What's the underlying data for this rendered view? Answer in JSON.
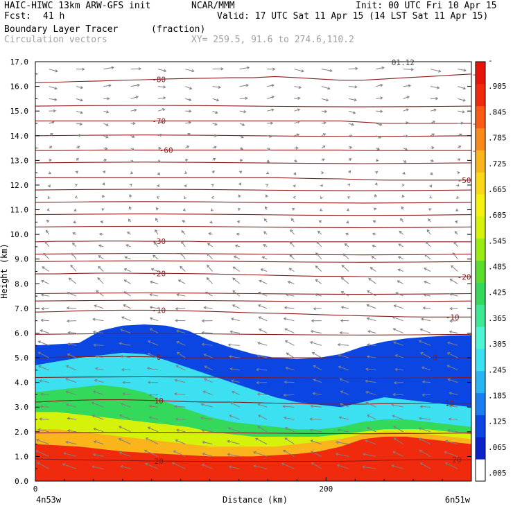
{
  "header": {
    "model_title": "HAIC-HIWC 13km ARW-GFS init",
    "org": "NCAR/MMM",
    "init": "Init: 00 UTC Fri 10 Apr 15",
    "fcst_label": "Fcst:",
    "fcst_value": "41 h",
    "valid": "Valid: 17 UTC Sat 11 Apr 15 (14 LST Sat 11 Apr 15)",
    "field_name": "Boundary Layer Tracer",
    "field_units": "(fraction)",
    "overlay_name": "Circulation vectors",
    "xy": "XY= 259.5, 91.6 to 274.6,110.2"
  },
  "colors": {
    "contour": "#8b1a1a",
    "vector": "#808080"
  },
  "chart_data": {
    "type": "heatmap",
    "xlabel": "Distance (km)",
    "ylabel": "Height (km)",
    "xlim": [
      0,
      300
    ],
    "ylim": [
      0,
      17
    ],
    "x_ticks": [
      "0",
      "200"
    ],
    "x_tick_values": [
      0,
      200
    ],
    "y_ticks": [
      "0.0",
      "1.0",
      "2.0",
      "3.0",
      "4.0",
      "5.0",
      "6.0",
      "7.0",
      "8.0",
      "9.0",
      "10.0",
      "11.0",
      "12.0",
      "13.0",
      "14.0",
      "15.0",
      "16.0",
      "17.0"
    ],
    "endpoint_left": "4n53w",
    "endpoint_right": "6n51w",
    "top_right_annotation": "01.12",
    "colorbar": {
      "labels": [
        ".005",
        ".065",
        ".125",
        ".185",
        ".245",
        ".305",
        ".365",
        ".425",
        ".485",
        ".545",
        ".605",
        ".665",
        ".725",
        ".785",
        ".845",
        ".905",
        "-"
      ],
      "label_values": [
        0.005,
        0.065,
        0.125,
        0.185,
        0.245,
        0.305,
        0.365,
        0.425,
        0.485,
        0.545,
        0.605,
        0.665,
        0.725,
        0.785,
        0.845,
        0.905,
        0.965
      ],
      "colors": [
        "#ffffff",
        "#0a22c8",
        "#0c46e2",
        "#1a7ef0",
        "#2ab4f2",
        "#3ce0f0",
        "#50f4d2",
        "#3fe894",
        "#34d85a",
        "#5cdc2c",
        "#9aea14",
        "#d4f20a",
        "#f6f210",
        "#fad818",
        "#fab41c",
        "#fa8a1c",
        "#fa5a14",
        "#f02a0c",
        "#e8140a"
      ]
    },
    "tracer_regions": [
      {
        "label": "fraction ≥ 0.005",
        "level": 0.005,
        "top_km": [
          5.5,
          5.55,
          5.6,
          6.1,
          6.3,
          6.35,
          6.3,
          6.1,
          5.7,
          5.4,
          5.15,
          5.0,
          4.95,
          5.0,
          5.15,
          5.45,
          5.65,
          5.78,
          5.85,
          5.9,
          5.92
        ]
      },
      {
        "label": "fraction ≥ 0.185",
        "level": 0.185,
        "top_km": [
          4.7,
          4.85,
          5.0,
          5.1,
          5.2,
          5.15,
          4.9,
          4.6,
          4.3,
          4.0,
          3.7,
          3.4,
          3.2,
          3.1,
          3.0,
          3.2,
          3.4,
          3.3,
          3.2,
          3.1,
          3.0
        ]
      },
      {
        "label": "fraction ≥ 0.365",
        "level": 0.365,
        "top_km": [
          3.6,
          3.7,
          3.8,
          3.9,
          3.8,
          3.6,
          3.2,
          2.9,
          2.6,
          2.4,
          2.3,
          2.2,
          2.1,
          2.1,
          2.2,
          2.4,
          2.5,
          2.5,
          2.4,
          2.3,
          2.2
        ]
      },
      {
        "label": "fraction ≥ 0.545",
        "level": 0.545,
        "top_km": [
          2.8,
          2.8,
          2.7,
          2.6,
          2.5,
          2.4,
          2.3,
          2.2,
          2.0,
          1.9,
          1.8,
          1.8,
          1.8,
          1.8,
          1.9,
          2.0,
          2.1,
          2.1,
          2.1,
          2.0,
          1.9
        ]
      },
      {
        "label": "fraction ≥ 0.725",
        "level": 0.725,
        "top_km": [
          2.1,
          2.1,
          2.0,
          1.9,
          1.8,
          1.7,
          1.6,
          1.5,
          1.4,
          1.4,
          1.4,
          1.4,
          1.5,
          1.6,
          1.7,
          1.9,
          2.0,
          2.0,
          1.9,
          1.8,
          1.7
        ]
      },
      {
        "label": "fraction ≥ 0.905",
        "level": 0.905,
        "top_km": [
          1.5,
          1.45,
          1.4,
          1.3,
          1.2,
          1.15,
          1.1,
          1.05,
          1.0,
          1.0,
          1.0,
          1.05,
          1.1,
          1.2,
          1.4,
          1.7,
          1.8,
          1.8,
          1.7,
          1.6,
          1.5
        ]
      }
    ],
    "temperature_contours": [
      {
        "label": "20",
        "height_km": [
          0.9,
          0.88,
          0.86,
          0.85,
          0.84,
          0.82,
          0.81,
          0.8,
          0.8,
          0.8,
          0.8,
          0.8,
          0.8,
          0.8,
          0.8,
          0.82,
          0.85,
          0.86,
          0.87,
          0.87,
          0.86
        ],
        "label_x_km": [
          85,
          290
        ]
      },
      {
        "label": "10",
        "height_km": [
          3.2,
          3.25,
          3.28,
          3.3,
          3.3,
          3.28,
          3.25,
          3.22,
          3.2,
          3.2,
          3.18,
          3.16,
          3.14,
          3.12,
          3.12,
          3.12,
          3.14,
          3.15,
          3.16,
          3.16,
          3.15
        ],
        "label_x_km": [
          85,
          285
        ]
      },
      {
        "label": "0",
        "height_km": [
          5.0,
          5.02,
          5.04,
          5.05,
          5.05,
          5.04,
          5.02,
          5.0,
          5.0,
          5.0,
          5.0,
          5.0,
          5.0,
          5.0,
          5.02,
          5.02,
          5.02,
          5.02,
          5.02,
          5.01,
          5.0
        ],
        "label_x_km": [
          85,
          275
        ]
      },
      {
        "label": "-10",
        "height_km": [
          6.85,
          6.87,
          6.9,
          6.92,
          6.93,
          6.93,
          6.92,
          6.9,
          6.88,
          6.85,
          6.82,
          6.8,
          6.78,
          6.75,
          6.72,
          6.7,
          6.68,
          6.66,
          6.65,
          6.65,
          6.65
        ],
        "label_x_km": [
          85,
          287
        ]
      },
      {
        "label": "-20",
        "height_km": [
          8.4,
          8.4,
          8.42,
          8.43,
          8.43,
          8.42,
          8.42,
          8.41,
          8.4,
          8.38,
          8.36,
          8.34,
          8.32,
          8.3,
          8.3,
          8.29,
          8.28,
          8.28,
          8.28,
          8.28,
          8.28
        ],
        "label_x_km": [
          85,
          295
        ]
      },
      {
        "label": "-30",
        "height_km": [
          9.7,
          9.72,
          9.72,
          9.73,
          9.73,
          9.72,
          9.72,
          9.72,
          9.7,
          9.7,
          9.7,
          9.7,
          9.7,
          9.7,
          9.7,
          9.7,
          9.7,
          9.7,
          9.7,
          9.7,
          9.7
        ],
        "label_x_km": [
          85
        ]
      },
      {
        "label": "-50",
        "height_km": [
          12.3,
          12.3,
          12.3,
          12.3,
          12.3,
          12.3,
          12.3,
          12.3,
          12.3,
          12.3,
          12.3,
          12.3,
          12.28,
          12.26,
          12.25,
          12.22,
          12.2,
          12.2,
          12.2,
          12.2,
          12.2
        ],
        "label_x_km": [
          295
        ]
      },
      {
        "label": "-60",
        "height_km": [
          13.4,
          13.4,
          13.41,
          13.42,
          13.42,
          13.42,
          13.42,
          13.42,
          13.42,
          13.42,
          13.42,
          13.42,
          13.42,
          13.42,
          13.42,
          13.4,
          13.4,
          13.4,
          13.4,
          13.4,
          13.4
        ],
        "label_x_km": [
          90,
          305
        ]
      },
      {
        "label": "-70",
        "height_km": [
          14.6,
          14.6,
          14.6,
          14.6,
          14.6,
          14.6,
          14.6,
          14.6,
          14.6,
          14.6,
          14.6,
          14.6,
          14.6,
          14.6,
          14.6,
          14.55,
          14.5,
          14.5,
          14.5,
          14.5,
          14.5
        ],
        "label_x_km": [
          85,
          305
        ]
      },
      {
        "label": "-80",
        "height_km": [
          16.15,
          16.17,
          16.2,
          16.22,
          16.25,
          16.27,
          16.3,
          16.32,
          16.33,
          16.35,
          16.35,
          16.4,
          16.35,
          16.3,
          16.25,
          16.25,
          16.3,
          16.35,
          16.4,
          16.45,
          16.5
        ],
        "label_x_km": [
          85,
          305
        ]
      }
    ],
    "unlabeled_isotherm_heights_km": [
      15.2,
      14.0,
      12.9,
      11.8,
      11.3,
      10.8,
      10.3,
      9.2,
      8.9,
      7.6,
      7.3,
      5.95,
      4.2,
      1.95
    ],
    "wind_vectors_u_by_height": [
      {
        "z_km": 0.5,
        "u": -14,
        "w": 0.5
      },
      {
        "z_km": 1.0,
        "u": -14,
        "w": 0.5
      },
      {
        "z_km": 1.5,
        "u": -13,
        "w": 0.5
      },
      {
        "z_km": 2.0,
        "u": -12,
        "w": 0.4
      },
      {
        "z_km": 2.5,
        "u": -12,
        "w": 0.3
      },
      {
        "z_km": 3.0,
        "u": -12,
        "w": 0.3
      },
      {
        "z_km": 3.5,
        "u": -11,
        "w": 0.2
      },
      {
        "z_km": 4.0,
        "u": -11,
        "w": 0.2
      },
      {
        "z_km": 4.5,
        "u": -11,
        "w": 0.3
      },
      {
        "z_km": 5.0,
        "u": -11,
        "w": 0.4
      },
      {
        "z_km": 5.5,
        "u": -12,
        "w": 0.3
      },
      {
        "z_km": 6.0,
        "u": -11,
        "w": 0.3
      },
      {
        "z_km": 6.5,
        "u": -11,
        "w": 0.2
      },
      {
        "z_km": 7.0,
        "u": -10,
        "w": 0.2
      },
      {
        "z_km": 7.5,
        "u": -9,
        "w": 0.4
      },
      {
        "z_km": 8.0,
        "u": -8,
        "w": 0.5
      },
      {
        "z_km": 8.5,
        "u": -7,
        "w": 0.5
      },
      {
        "z_km": 9.0,
        "u": -6,
        "w": 0.5
      },
      {
        "z_km": 9.5,
        "u": -5,
        "w": 0.4
      },
      {
        "z_km": 10.0,
        "u": -4,
        "w": 0.3
      },
      {
        "z_km": 10.5,
        "u": -3,
        "w": 0.2
      },
      {
        "z_km": 11.0,
        "u": -2,
        "w": 0.1
      },
      {
        "z_km": 11.5,
        "u": -1,
        "w": 0.1
      },
      {
        "z_km": 12.0,
        "u": 1,
        "w": 0.0
      },
      {
        "z_km": 12.5,
        "u": 2,
        "w": 0.0
      },
      {
        "z_km": 13.0,
        "u": 3,
        "w": 0.0
      },
      {
        "z_km": 13.5,
        "u": 4,
        "w": 0.0
      },
      {
        "z_km": 14.0,
        "u": 5,
        "w": 0.0
      },
      {
        "z_km": 14.5,
        "u": 6,
        "w": 0.0
      },
      {
        "z_km": 15.0,
        "u": 7,
        "w": 0.0
      },
      {
        "z_km": 15.5,
        "u": 8,
        "w": 0.0
      },
      {
        "z_km": 16.0,
        "u": 9,
        "w": -0.05
      },
      {
        "z_km": 16.7,
        "u": 11,
        "w": -0.05
      }
    ]
  }
}
